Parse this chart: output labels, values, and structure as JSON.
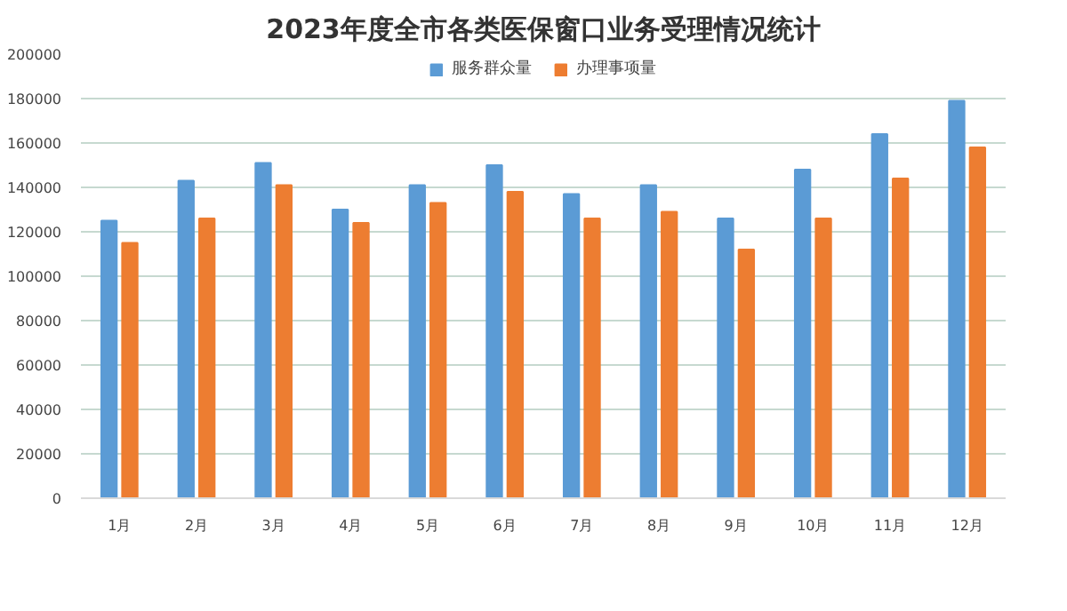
{
  "chart_data": {
    "type": "bar",
    "title": "2023年度全市各类医保窗口业务受理情况统计",
    "categories": [
      "1月",
      "2月",
      "3月",
      "4月",
      "5月",
      "6月",
      "7月",
      "8月",
      "9月",
      "10月",
      "11月",
      "12月"
    ],
    "series": [
      {
        "name": "服务群众量",
        "color": "#5b9bd5",
        "values": [
          125000,
          143000,
          151000,
          130000,
          141000,
          150000,
          137000,
          141000,
          126000,
          148000,
          164000,
          179000
        ]
      },
      {
        "name": "办理事项量",
        "color": "#ed7d31",
        "values": [
          115000,
          126000,
          141000,
          124000,
          133000,
          138000,
          126000,
          129000,
          112000,
          126000,
          144000,
          158000
        ]
      }
    ],
    "ylim": [
      0,
      200000
    ],
    "yticks": [
      0,
      20000,
      40000,
      60000,
      80000,
      100000,
      120000,
      140000,
      160000,
      180000,
      200000
    ],
    "grid": "y",
    "legend": "top"
  }
}
